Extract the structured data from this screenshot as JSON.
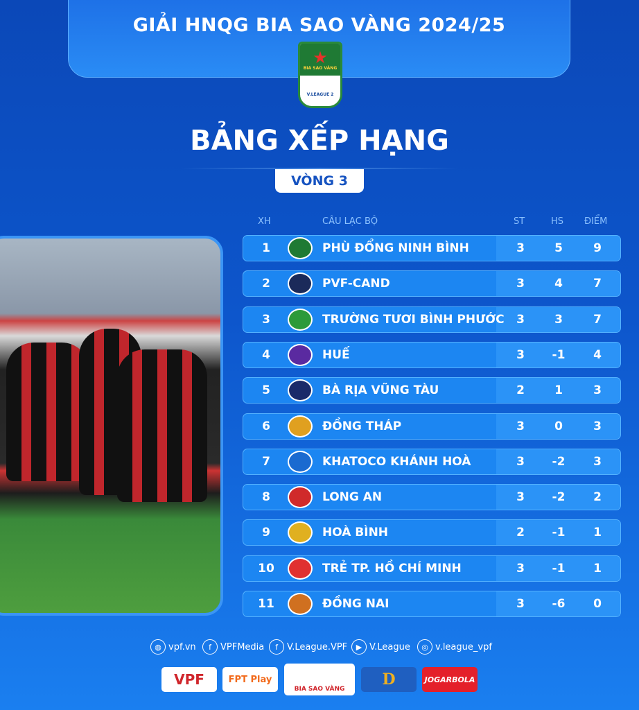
{
  "header": {
    "title": "GIẢI HNQG BIA SAO VÀNG 2024/25",
    "logo_text": "BIA SAO VÀNG V.LEAGUE 2 2024/25"
  },
  "title": "BẢNG XẾP HẠNG",
  "round": "VÒNG 3",
  "columns": {
    "rank": "XH",
    "club": "CÂU LẠC BỘ",
    "played": "ST",
    "gd": "HS",
    "points": "ĐIỂM"
  },
  "rows": [
    {
      "rank": "1",
      "club": "PHÙ ĐỔNG NINH BÌNH",
      "played": "3",
      "gd": "5",
      "points": "9",
      "color": "#1f7a34"
    },
    {
      "rank": "2",
      "club": "PVF-CAND",
      "played": "3",
      "gd": "4",
      "points": "7",
      "color": "#1b2a5a"
    },
    {
      "rank": "3",
      "club": "TRƯỜNG TƯƠI BÌNH PHƯỚC",
      "played": "3",
      "gd": "3",
      "points": "7",
      "color": "#2c9a3a"
    },
    {
      "rank": "4",
      "club": "HUẾ",
      "played": "3",
      "gd": "-1",
      "points": "4",
      "color": "#5a2aa0"
    },
    {
      "rank": "5",
      "club": "BÀ RỊA VŨNG TÀU",
      "played": "2",
      "gd": "1",
      "points": "3",
      "color": "#1a2a6a"
    },
    {
      "rank": "6",
      "club": "ĐỒNG THÁP",
      "played": "3",
      "gd": "0",
      "points": "3",
      "color": "#e0a020"
    },
    {
      "rank": "7",
      "club": "KHATOCO KHÁNH HOÀ",
      "played": "3",
      "gd": "-2",
      "points": "3",
      "color": "#1a6ad0"
    },
    {
      "rank": "8",
      "club": "LONG AN",
      "played": "3",
      "gd": "-2",
      "points": "2",
      "color": "#d02a2a"
    },
    {
      "rank": "9",
      "club": "HOÀ BÌNH",
      "played": "2",
      "gd": "-1",
      "points": "1",
      "color": "#e0b020"
    },
    {
      "rank": "10",
      "club": "TRẺ TP. HỒ CHÍ MINH",
      "played": "3",
      "gd": "-1",
      "points": "1",
      "color": "#e03030"
    },
    {
      "rank": "11",
      "club": "ĐỒNG NAI",
      "played": "3",
      "gd": "-6",
      "points": "0",
      "color": "#d07020"
    }
  ],
  "social": [
    {
      "icon": "globe-icon",
      "label": "vpf.vn"
    },
    {
      "icon": "facebook-icon",
      "label": "VPFMedia"
    },
    {
      "icon": "facebook-icon",
      "label": "V.League.VPF"
    },
    {
      "icon": "youtube-icon",
      "label": "V.League"
    },
    {
      "icon": "instagram-icon",
      "label": "v.league_vpf"
    }
  ],
  "sponsors": [
    "VPF",
    "FPT Play",
    "BIA SAO VÀNG",
    "D",
    "JOGARBOLA"
  ]
}
